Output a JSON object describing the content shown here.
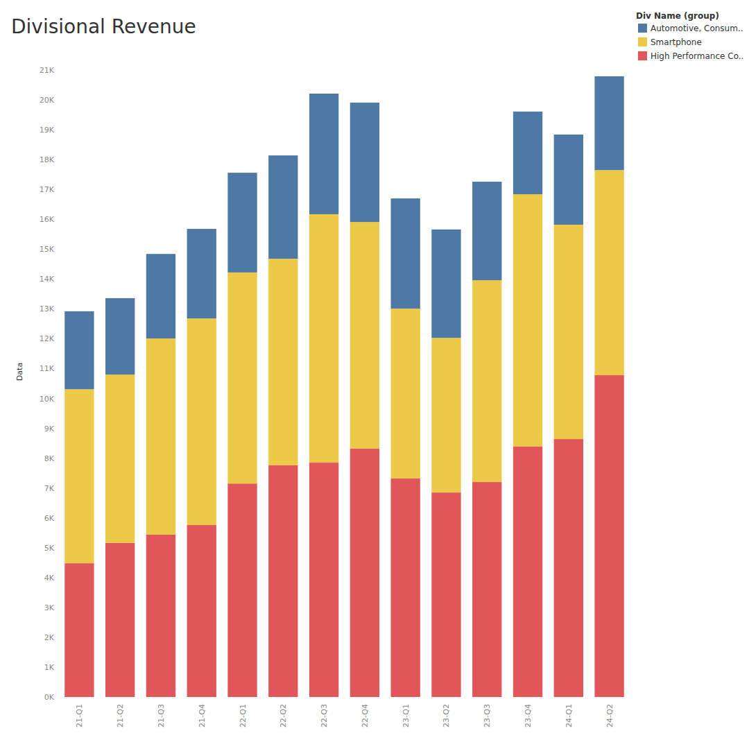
{
  "chart_data": {
    "type": "bar",
    "title": "Divisional Revenue",
    "y_label": "Data",
    "legend_title": "Div Name (group)",
    "stacked": true,
    "grid": false,
    "legend": "top-right",
    "categories": [
      "21-Q1",
      "21-Q2",
      "21-Q3",
      "21-Q4",
      "22-Q1",
      "22-Q2",
      "22-Q3",
      "22-Q4",
      "23-Q1",
      "23-Q2",
      "23-Q3",
      "23-Q4",
      "24-Q1",
      "24-Q2"
    ],
    "series": [
      {
        "name": "Automotive, Consum..",
        "color": "#4e79a7",
        "values": [
          2610,
          2560,
          2830,
          3000,
          3340,
          3460,
          4040,
          4000,
          3690,
          3630,
          3300,
          2770,
          3020,
          3140
        ]
      },
      {
        "name": "Smartphone",
        "color": "#edc948",
        "values": [
          5830,
          5640,
          6570,
          6920,
          7070,
          6920,
          8320,
          7590,
          5690,
          5180,
          6760,
          8450,
          7180,
          6870
        ]
      },
      {
        "name": "High Performance Co..",
        "color": "#e15759",
        "values": [
          4480,
          5160,
          5440,
          5760,
          7150,
          7760,
          7850,
          8320,
          7320,
          6850,
          7200,
          8390,
          8640,
          10780
        ]
      }
    ],
    "ylim": [
      0,
      21000
    ],
    "yticks": [
      {
        "value": 0,
        "label": "0K"
      },
      {
        "value": 1000,
        "label": "1K"
      },
      {
        "value": 2000,
        "label": "2K"
      },
      {
        "value": 3000,
        "label": "3K"
      },
      {
        "value": 4000,
        "label": "4K"
      },
      {
        "value": 5000,
        "label": "5K"
      },
      {
        "value": 6000,
        "label": "6K"
      },
      {
        "value": 7000,
        "label": "7K"
      },
      {
        "value": 8000,
        "label": "8K"
      },
      {
        "value": 9000,
        "label": "9K"
      },
      {
        "value": 10000,
        "label": "10K"
      },
      {
        "value": 11000,
        "label": "11K"
      },
      {
        "value": 12000,
        "label": "12K"
      },
      {
        "value": 13000,
        "label": "13K"
      },
      {
        "value": 14000,
        "label": "14K"
      },
      {
        "value": 15000,
        "label": "15K"
      },
      {
        "value": 16000,
        "label": "16K"
      },
      {
        "value": 17000,
        "label": "17K"
      },
      {
        "value": 18000,
        "label": "18K"
      },
      {
        "value": 19000,
        "label": "19K"
      },
      {
        "value": 20000,
        "label": "20K"
      },
      {
        "value": 21000,
        "label": "21K"
      }
    ]
  }
}
